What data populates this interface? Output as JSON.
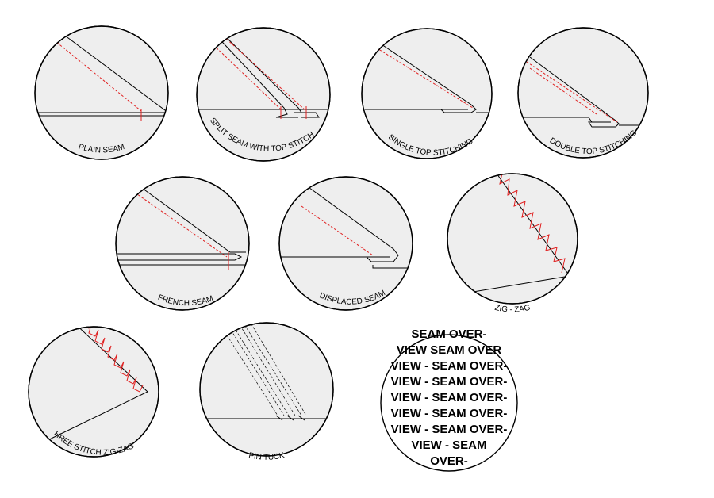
{
  "labels": {
    "plain": "PLAIN SEAM",
    "split": "SPLIT SEAM WITH TOP STITCH",
    "single": "SINGLE TOP STITCHING",
    "double": "DOUBLE TOP STITCHING",
    "french": "FRENCH SEAM",
    "displaced": "DISPLACED SEAM",
    "zigzag": "ZIG - ZAG",
    "three": "THREE STITCH ZIG-ZAG",
    "pintuck": "PIN TUCK"
  },
  "overview": {
    "lines": [
      "SEAM OVER-",
      "VIEW SEAM OVER",
      "VIEW - SEAM OVER-",
      "VIEW - SEAM OVER-",
      "VIEW - SEAM OVER-",
      "VIEW - SEAM OVER-",
      "VIEW - SEAM OVER-",
      "VIEW - SEAM",
      "OVER-"
    ]
  },
  "colors": {
    "stitch": "#e02020",
    "circle_fill": "#eeeeee",
    "outline": "#000000"
  }
}
